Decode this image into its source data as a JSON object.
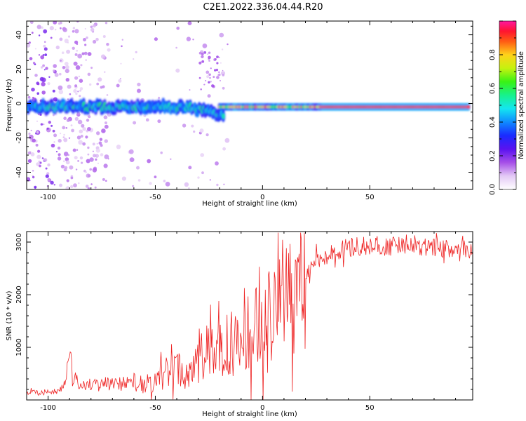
{
  "title": "C2E1.2022.336.04.44.R20",
  "colors": {
    "snr_line": "#ee2222",
    "frame": "#000000",
    "ridge_center": "#e8132b"
  },
  "chart_data": [
    {
      "type": "heatmap",
      "xlabel": "Height of straight line (km)",
      "ylabel": "Frequency (Hz)",
      "xlim": [
        -110,
        98
      ],
      "ylim": [
        -50,
        48
      ],
      "x_ticks": [
        -100,
        -50,
        0,
        50
      ],
      "y_ticks": [
        -40,
        -20,
        0,
        20,
        40
      ],
      "colorbar": {
        "label": "Normalized spectral amplitude",
        "range": [
          0,
          1
        ],
        "ticks": [
          0.0,
          0.2,
          0.4,
          0.6,
          0.8
        ],
        "colormap": "rainbow (white → purple → blue → cyan → green → yellow → red → magenta)"
      },
      "features": [
        {
          "description": "narrow high-amplitude ridge near 0 Hz",
          "x_range": [
            -20,
            95
          ],
          "frequency": -2,
          "amplitude": 0.9
        },
        {
          "description": "broad noisy ridge near 0 Hz",
          "x_range": [
            -110,
            -20
          ],
          "frequency": -2,
          "amplitude": 0.35
        },
        {
          "description": "scattered low-amplitude noise",
          "x_range": [
            -110,
            -55
          ],
          "frequency_range": [
            -50,
            48
          ],
          "amplitude": 0.1
        }
      ]
    },
    {
      "type": "line",
      "xlabel": "Height of straight line (km)",
      "ylabel": "SNR (10 * v/v)",
      "xlim": [
        -110,
        98
      ],
      "ylim": [
        0,
        3200
      ],
      "x_ticks": [
        -100,
        -50,
        0,
        50
      ],
      "y_ticks": [
        1000,
        2000,
        3000
      ],
      "series": [
        {
          "x": [
            -110,
            -100,
            -95,
            -92,
            -90,
            -88,
            -85,
            -80,
            -75,
            -70,
            -65,
            -60,
            -55,
            -50,
            -45,
            -40,
            -35,
            -30,
            -25,
            -20,
            -15,
            -10,
            -5,
            0,
            5,
            10,
            15,
            18,
            20,
            25,
            30,
            40,
            50,
            60,
            70,
            80,
            90,
            98
          ],
          "values": [
            140,
            150,
            170,
            350,
            850,
            420,
            280,
            300,
            330,
            330,
            330,
            340,
            300,
            370,
            520,
            600,
            420,
            750,
            1100,
            900,
            1100,
            1200,
            1450,
            1650,
            1800,
            1900,
            1850,
            2100,
            2300,
            2650,
            2750,
            2900,
            2950,
            2900,
            2950,
            2900,
            2850,
            2850
          ]
        }
      ]
    }
  ]
}
